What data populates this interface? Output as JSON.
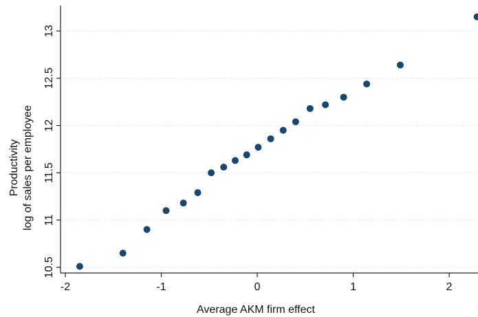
{
  "chart_data": {
    "type": "scatter",
    "xlabel": "Average AKM firm effect",
    "ylabel_lines": [
      "Productivity",
      "log of sales per employee"
    ],
    "xlim": [
      -2.05,
      2.3
    ],
    "ylim": [
      10.44,
      13.27
    ],
    "xticks": [
      -2,
      -1,
      0,
      1,
      2
    ],
    "xtick_labels": [
      "-2",
      "-1",
      "0",
      "1",
      "2"
    ],
    "yticks": [
      10.5,
      11,
      11.5,
      12,
      12.5,
      13
    ],
    "ytick_labels": [
      "10.5",
      "11",
      "11.5",
      "12",
      "12.5",
      "13"
    ],
    "grid": "horizontal",
    "marker_color": "#1a476f",
    "points": [
      {
        "x": -1.85,
        "y": 10.51
      },
      {
        "x": -1.4,
        "y": 10.65
      },
      {
        "x": -1.15,
        "y": 10.9
      },
      {
        "x": -0.95,
        "y": 11.1
      },
      {
        "x": -0.77,
        "y": 11.18
      },
      {
        "x": -0.62,
        "y": 11.29
      },
      {
        "x": -0.48,
        "y": 11.5
      },
      {
        "x": -0.35,
        "y": 11.56
      },
      {
        "x": -0.23,
        "y": 11.63
      },
      {
        "x": -0.11,
        "y": 11.69
      },
      {
        "x": 0.01,
        "y": 11.77
      },
      {
        "x": 0.14,
        "y": 11.86
      },
      {
        "x": 0.27,
        "y": 11.95
      },
      {
        "x": 0.4,
        "y": 12.04
      },
      {
        "x": 0.55,
        "y": 12.18
      },
      {
        "x": 0.71,
        "y": 12.22
      },
      {
        "x": 0.9,
        "y": 12.3
      },
      {
        "x": 1.14,
        "y": 12.44
      },
      {
        "x": 1.49,
        "y": 12.64
      },
      {
        "x": 2.29,
        "y": 13.15
      }
    ]
  }
}
